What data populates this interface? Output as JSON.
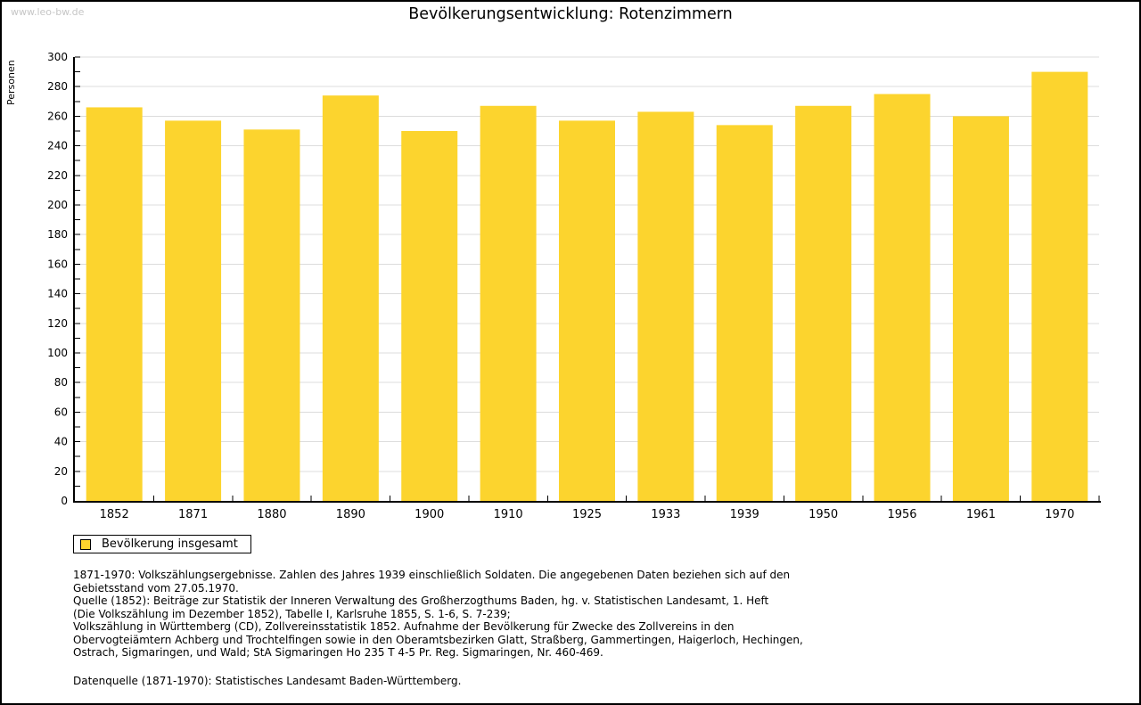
{
  "watermark": "www.leo-bw.de",
  "title": "Bevölkerungsentwicklung: Rotenzimmern",
  "legend": {
    "label": "Bevölkerung insgesamt",
    "swatch_color": "#FCD42E"
  },
  "chart_data": {
    "type": "bar",
    "title": "Bevölkerungsentwicklung: Rotenzimmern",
    "xlabel": "",
    "ylabel": "Personen",
    "categories": [
      "1852",
      "1871",
      "1880",
      "1890",
      "1900",
      "1910",
      "1925",
      "1933",
      "1939",
      "1950",
      "1956",
      "1961",
      "1970"
    ],
    "values": [
      266,
      257,
      251,
      274,
      250,
      267,
      257,
      263,
      254,
      267,
      275,
      260,
      290
    ],
    "ylim": [
      0,
      300
    ],
    "ytick_major": 20,
    "ytick_minor": 10,
    "grid": true,
    "legend_entries": [
      "Bevölkerung insgesamt"
    ],
    "legend_position": "bottom-left",
    "bar_color": "#FCD42E",
    "grid_color": "#DCDCDC",
    "axis_color": "#000000"
  },
  "notes": {
    "lines": [
      "1871-1970: Volkszählungsergebnisse. Zahlen des Jahres 1939 einschließlich Soldaten. Die angegebenen Daten beziehen sich auf den",
      "Gebietsstand vom 27.05.1970.",
      "Quelle (1852): Beiträge zur Statistik der Inneren Verwaltung des Großherzogthums Baden, hg. v. Statistischen Landesamt, 1. Heft",
      "(Die Volkszählung im Dezember 1852), Tabelle I, Karlsruhe 1855, S. 1-6, S. 7-239;",
      "Volkszählung in Württemberg (CD), Zollvereinsstatistik 1852. Aufnahme der Bevölkerung für Zwecke des Zollvereins in den",
      "Obervogteiämtern Achberg und Trochtelfingen sowie in den Oberamtsbezirken Glatt, Straßberg, Gammertingen, Haigerloch, Hechingen,",
      "Ostrach, Sigmaringen, und Wald; StA Sigmaringen Ho 235 T 4-5 Pr. Reg. Sigmaringen, Nr. 460-469."
    ],
    "datasource": "Datenquelle (1871-1970): Statistisches Landesamt Baden-Württemberg."
  }
}
